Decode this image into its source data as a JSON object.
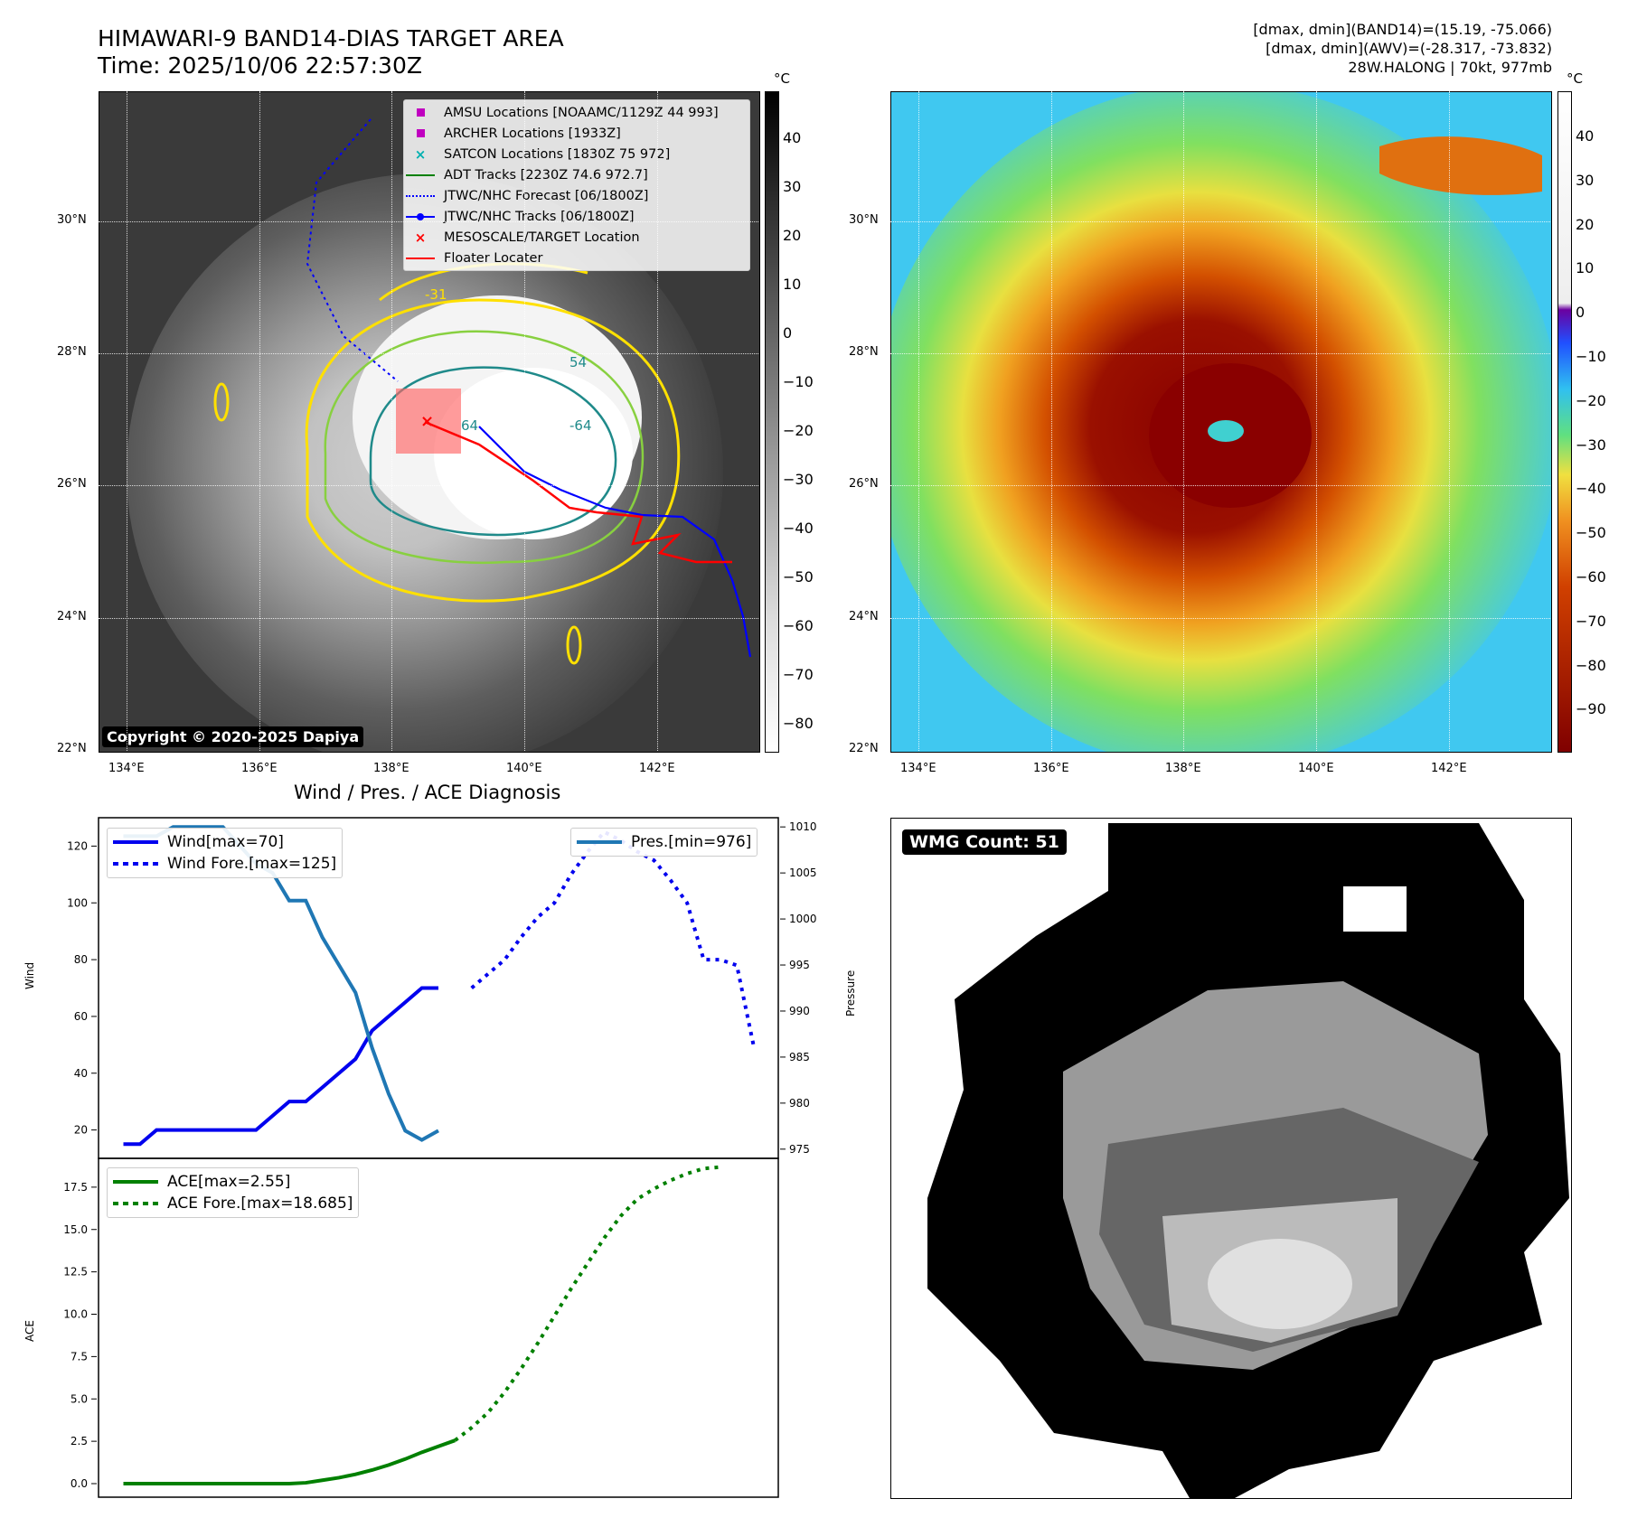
{
  "header": {
    "title_line1": "HIMAWARI-9 BAND14-DIAS TARGET AREA",
    "title_line2": "Time: 2025/10/06 22:57:30Z",
    "info_line1": "[dmax, dmin](BAND14)=(15.19, -75.066)",
    "info_line2": "[dmax, dmin](AWV)=(-28.317, -73.832)",
    "info_line3": "28W.HALONG | 70kt, 977mb"
  },
  "map_axes": {
    "lon_ticks": [
      "134°E",
      "136°E",
      "138°E",
      "140°E",
      "142°E"
    ],
    "lat_ticks": [
      "30°N",
      "28°N",
      "26°N",
      "24°N",
      "22°N"
    ]
  },
  "left_map": {
    "colorbar_unit": "°C",
    "colorbar_ticks": [
      "40",
      "30",
      "20",
      "10",
      "0",
      "−10",
      "−20",
      "−30",
      "−40",
      "−50",
      "−60",
      "−70",
      "−80"
    ],
    "contour_labels": [
      "-31",
      "54",
      "64",
      "-64"
    ],
    "copyright": "Copyright © 2020-2025 Dapiya",
    "legend": [
      {
        "label": "AMSU Locations [NOAAMC/1129Z 44 993]",
        "icon": "magenta-square",
        "color": "#c000c0"
      },
      {
        "label": "ARCHER Locations [1933Z]",
        "icon": "magenta-square",
        "color": "#c000c0"
      },
      {
        "label": "SATCON Locations [1830Z 75 972]",
        "icon": "cyan-x",
        "color": "#00b0b0"
      },
      {
        "label": "ADT Tracks [2230Z 74.6 972.7]",
        "icon": "green-line",
        "color": "#008000"
      },
      {
        "label": "JTWC/NHC Forecast [06/1800Z]",
        "icon": "blue-dotted-line",
        "color": "#0000ff"
      },
      {
        "label": "JTWC/NHC Tracks [06/1800Z]",
        "icon": "blue-line-dot",
        "color": "#0000ff"
      },
      {
        "label": "MESOSCALE/TARGET Location",
        "icon": "red-x",
        "color": "#ff0000"
      },
      {
        "label": "Floater Locater",
        "icon": "red-line",
        "color": "#ff0000"
      }
    ]
  },
  "right_map": {
    "colorbar_unit": "°C",
    "colorbar_ticks": [
      "40",
      "30",
      "20",
      "10",
      "0",
      "−10",
      "−20",
      "−30",
      "−40",
      "−50",
      "−60",
      "−70",
      "−80",
      "−90"
    ]
  },
  "wmg": {
    "count_label": "WMG Count: 51"
  },
  "chart_data": [
    {
      "type": "line",
      "title": "Wind / Pres. / ACE Diagnosis",
      "ylabel": "Wind",
      "ylabel_right": "Pressure",
      "ylim": [
        10,
        130
      ],
      "ylim_right": [
        974,
        1011
      ],
      "yticks": [
        20,
        40,
        60,
        80,
        100,
        120
      ],
      "yticks_right": [
        975,
        980,
        985,
        990,
        995,
        1000,
        1005,
        1010
      ],
      "series": [
        {
          "name": "Wind[max=70]",
          "axis": "left",
          "style": "solid",
          "color": "#0000ee",
          "x": [
            0,
            1,
            2,
            3,
            4,
            5,
            6,
            7,
            8,
            9,
            10,
            11,
            12,
            13,
            14,
            15,
            16,
            17,
            18,
            19,
            20,
            21
          ],
          "values": [
            15,
            15,
            20,
            20,
            20,
            20,
            20,
            20,
            20,
            25,
            30,
            30,
            35,
            40,
            45,
            55,
            60,
            65,
            70,
            70,
            null,
            null
          ]
        },
        {
          "name": "Wind Fore.[max=125]",
          "axis": "left",
          "style": "dotted",
          "color": "#0000ee",
          "x": [
            21,
            22,
            23,
            24,
            25,
            26,
            27,
            28,
            29,
            30,
            31,
            32,
            33,
            34,
            35,
            36,
            37,
            38
          ],
          "values": [
            70,
            75,
            80,
            88,
            95,
            100,
            110,
            118,
            125,
            122,
            118,
            115,
            108,
            100,
            80,
            80,
            78,
            50
          ]
        },
        {
          "name": "Pres.[min=976]",
          "axis": "right",
          "style": "solid",
          "color": "#1f77b4",
          "x": [
            0,
            1,
            2,
            3,
            4,
            5,
            6,
            7,
            8,
            9,
            10,
            11,
            12,
            13,
            14,
            15,
            16,
            17,
            18,
            19,
            20
          ],
          "values": [
            1009,
            1009,
            1009,
            1010,
            1010,
            1010,
            1010,
            1008,
            1006,
            1005,
            1002,
            1002,
            998,
            995,
            992,
            986,
            981,
            977,
            976,
            977,
            null
          ]
        }
      ]
    },
    {
      "type": "line",
      "ylabel": "ACE",
      "ylim": [
        -0.8,
        19.2
      ],
      "yticks": [
        0.0,
        2.5,
        5.0,
        7.5,
        10.0,
        12.5,
        15.0,
        17.5
      ],
      "series": [
        {
          "name": "ACE[max=2.55]",
          "style": "solid",
          "color": "#008000",
          "x": [
            0,
            1,
            2,
            3,
            4,
            5,
            6,
            7,
            8,
            9,
            10,
            11,
            12,
            13,
            14,
            15,
            16,
            17,
            18,
            19,
            20
          ],
          "values": [
            0,
            0,
            0,
            0,
            0,
            0,
            0,
            0,
            0,
            0,
            0,
            0.05,
            0.2,
            0.35,
            0.55,
            0.8,
            1.1,
            1.45,
            1.85,
            2.2,
            2.55
          ]
        },
        {
          "name": "ACE Fore.[max=18.685]",
          "style": "dotted",
          "color": "#008000",
          "x": [
            20,
            21,
            22,
            23,
            24,
            25,
            26,
            27,
            28,
            29,
            30,
            31,
            32,
            33,
            34,
            35,
            36
          ],
          "values": [
            2.55,
            3.3,
            4.2,
            5.4,
            6.8,
            8.3,
            9.9,
            11.5,
            13.0,
            14.5,
            15.8,
            16.8,
            17.4,
            17.9,
            18.3,
            18.6,
            18.685
          ]
        }
      ]
    }
  ]
}
